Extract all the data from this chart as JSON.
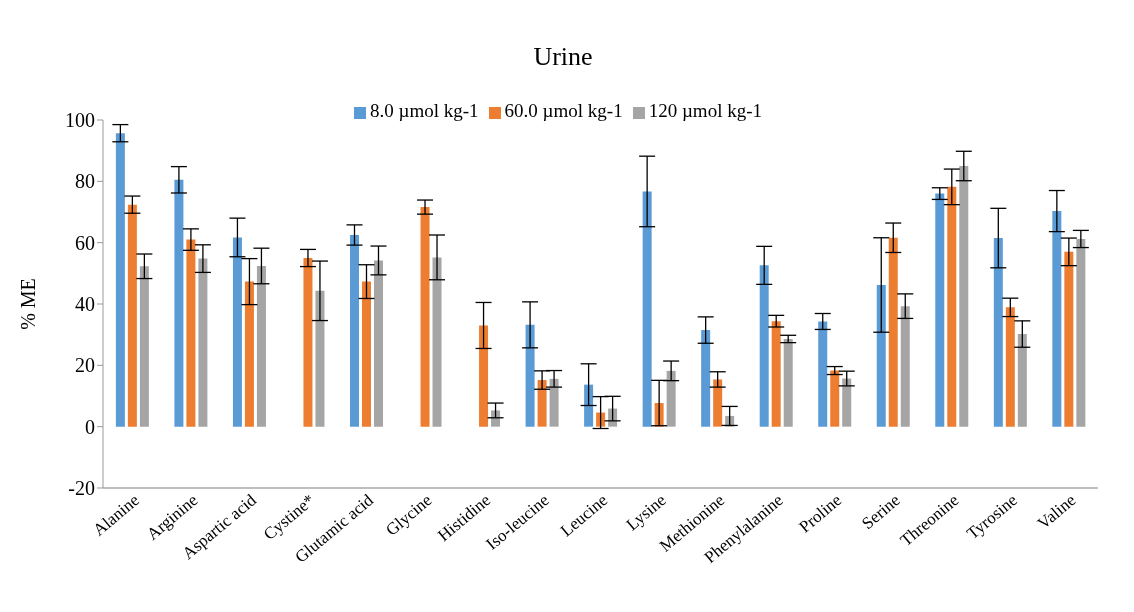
{
  "chart_data": {
    "type": "bar",
    "title": "Urine",
    "ylabel": "% ME",
    "categories": [
      "Alanine",
      "Arginine",
      "Aspartic acid",
      "Cystine*",
      "Glutamic acid",
      "Glycine",
      "Histidine",
      "Iso-leucine",
      "Leucine",
      "Lysine",
      "Methionine",
      "Phenylalanine",
      "Proline",
      "Serine",
      "Threonine",
      "Tyrosine",
      "Valine"
    ],
    "series": [
      {
        "name": "8.0 µmol kg-1",
        "color": "#5b9bd5",
        "values": [
          95.7,
          80.5,
          61.7,
          null,
          62.5,
          null,
          null,
          33.2,
          13.7,
          76.7,
          31.5,
          52.6,
          34.3,
          46.2,
          76,
          61.5,
          70.3
        ],
        "errors": [
          2.8,
          4.3,
          6.3,
          null,
          3.3,
          null,
          null,
          7.5,
          6.8,
          11.5,
          4.3,
          6.2,
          2.6,
          15.4,
          1.9,
          9.7,
          6.7
        ]
      },
      {
        "name": "60.0 µmol kg-1",
        "color": "#ed7d31",
        "values": [
          72.4,
          61,
          47.3,
          55,
          47.3,
          71.6,
          33,
          15.2,
          4.6,
          7.7,
          15.4,
          34.4,
          18.3,
          61.6,
          78.2,
          38.9,
          57
        ],
        "errors": [
          2.8,
          3.5,
          7.5,
          2.8,
          5.5,
          2.3,
          7.5,
          3,
          5.2,
          7.4,
          2.5,
          1.9,
          1.3,
          4.8,
          5.8,
          3,
          4.5
        ]
      },
      {
        "name": "120 µmol kg-1",
        "color": "#a5a5a5",
        "values": [
          52.3,
          54.8,
          52.4,
          44.3,
          54.2,
          55.2,
          5.3,
          15.6,
          5.9,
          18.2,
          3.5,
          28.6,
          15.7,
          39.3,
          85,
          30.2,
          61.2
        ],
        "errors": [
          4,
          4.5,
          5.8,
          9.7,
          4.7,
          7.3,
          2.4,
          2.7,
          4,
          3.2,
          3.1,
          1.2,
          2.4,
          4,
          4.8,
          4.3,
          2.8
        ]
      }
    ],
    "ylim": [
      -20,
      100
    ],
    "yticks": [
      -20,
      0,
      20,
      40,
      60,
      80,
      100
    ],
    "grid": false,
    "legend": "top"
  }
}
